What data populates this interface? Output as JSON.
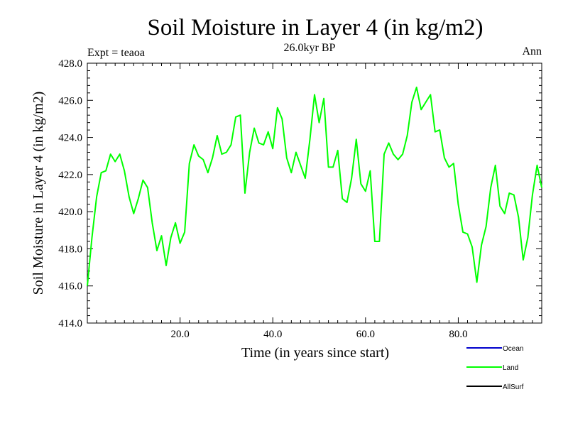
{
  "chart_data": {
    "type": "line",
    "title": "Soil Moisture in Layer 4 (in kg/m2)",
    "subtitle": "26.0kyr BP",
    "left_label": "Expt = teaoa",
    "right_label": "Ann",
    "xlabel": "Time (in years since start)",
    "ylabel": "Soil Moisture in Layer 4 (in kg/m2)",
    "xlim": [
      0,
      98
    ],
    "ylim": [
      414,
      428
    ],
    "x_ticks": [
      20,
      40,
      60,
      80
    ],
    "x_tick_labels": [
      "20.0",
      "40.0",
      "60.0",
      "80.0"
    ],
    "y_ticks": [
      414,
      416,
      418,
      420,
      422,
      424,
      426,
      428
    ],
    "y_tick_labels": [
      "414.0",
      "416.0",
      "418.0",
      "420.0",
      "422.0",
      "424.0",
      "426.0",
      "428.0"
    ],
    "legend": [
      {
        "name": "Ocean",
        "color": "#0000cc"
      },
      {
        "name": "Land",
        "color": "#00ff00"
      },
      {
        "name": "AllSurf",
        "color": "#000000"
      }
    ],
    "series": [
      {
        "name": "Land",
        "color": "#00ff00",
        "x": [
          0,
          1,
          2,
          3,
          4,
          5,
          6,
          7,
          8,
          9,
          10,
          11,
          12,
          13,
          14,
          15,
          16,
          17,
          18,
          19,
          20,
          21,
          22,
          23,
          24,
          25,
          26,
          27,
          28,
          29,
          30,
          31,
          32,
          33,
          34,
          35,
          36,
          37,
          38,
          39,
          40,
          41,
          42,
          43,
          44,
          45,
          46,
          47,
          48,
          49,
          50,
          51,
          52,
          53,
          54,
          55,
          56,
          57,
          58,
          59,
          60,
          61,
          62,
          63,
          64,
          65,
          66,
          67,
          68,
          69,
          70,
          71,
          72,
          73,
          74,
          75,
          76,
          77,
          78,
          79,
          80,
          81,
          82,
          83,
          84,
          85,
          86,
          87,
          88,
          89,
          90,
          91,
          92,
          93,
          94,
          95,
          96,
          97,
          98
        ],
        "values": [
          416.0,
          418.6,
          420.8,
          422.1,
          422.2,
          423.1,
          422.7,
          423.1,
          422.2,
          420.8,
          419.9,
          420.7,
          421.7,
          421.3,
          419.4,
          417.9,
          418.7,
          417.1,
          418.6,
          419.4,
          418.3,
          418.9,
          422.6,
          423.6,
          423.0,
          422.8,
          422.1,
          422.9,
          424.1,
          423.1,
          423.2,
          423.6,
          425.1,
          425.2,
          421.0,
          423.2,
          424.5,
          423.7,
          423.6,
          424.3,
          423.4,
          425.6,
          425.0,
          422.9,
          422.1,
          423.2,
          422.5,
          421.8,
          423.9,
          426.3,
          424.8,
          426.1,
          422.4,
          422.4,
          423.3,
          420.7,
          420.5,
          421.8,
          423.9,
          421.5,
          421.1,
          422.2,
          418.4,
          418.4,
          423.1,
          423.7,
          423.1,
          422.8,
          423.1,
          424.1,
          425.9,
          426.7,
          425.5,
          425.9,
          426.3,
          424.3,
          424.4,
          422.9,
          422.4,
          422.6,
          420.4,
          418.9,
          418.8,
          418.1,
          416.2,
          418.2,
          419.2,
          421.3,
          422.5,
          420.3,
          419.9,
          421.0,
          420.9,
          419.7,
          417.4,
          418.6,
          420.9,
          422.5,
          421.3
        ]
      }
    ]
  }
}
